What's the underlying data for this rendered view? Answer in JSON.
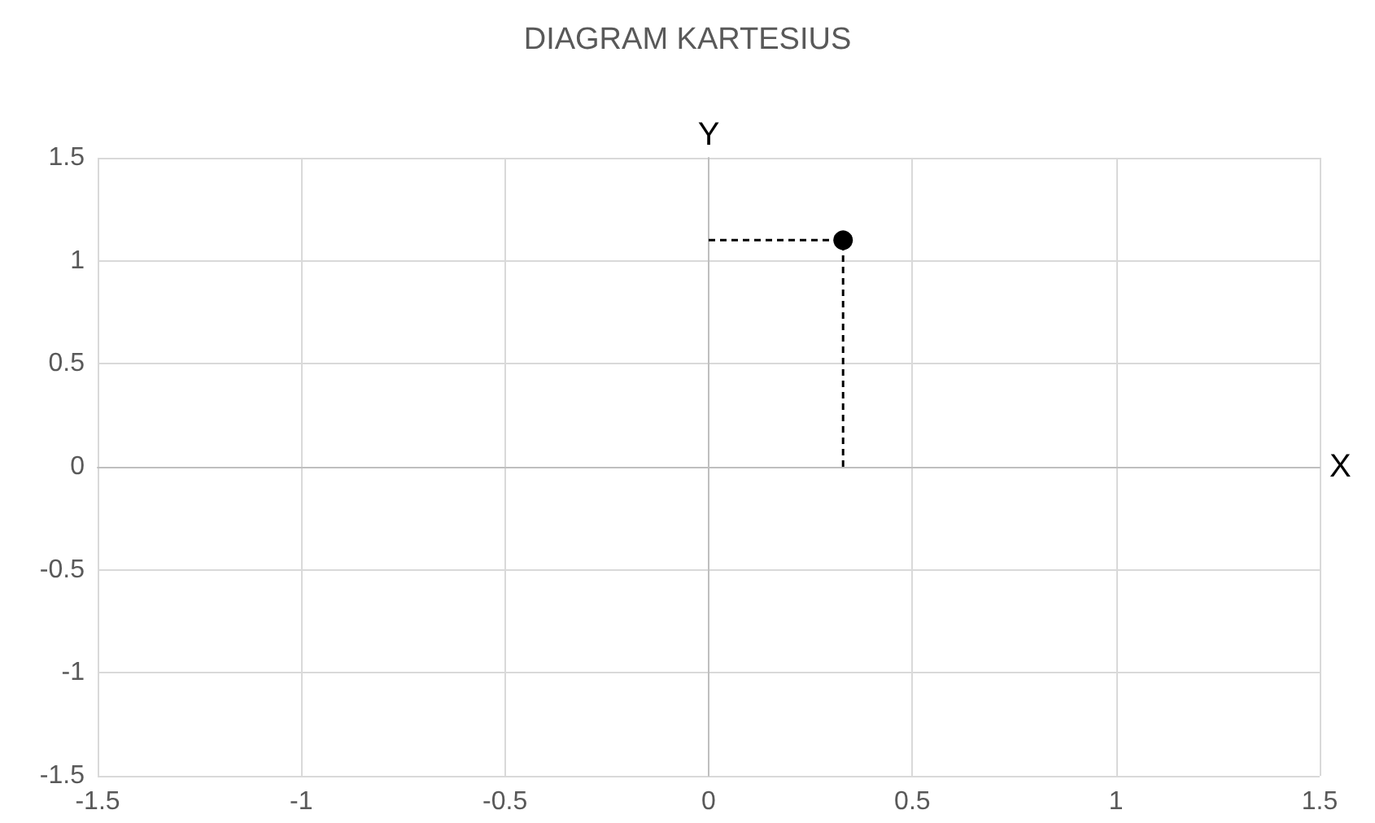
{
  "chart_data": {
    "type": "scatter",
    "title": "DIAGRAM KARTESIUS",
    "xlabel": "X",
    "ylabel": "Y",
    "series": [
      {
        "color": "#000000",
        "x": [
          0.33
        ],
        "values": [
          1.1
        ],
        "marker": "circle",
        "line_style": "dashed",
        "errors": [
          [
            0,
            1.1
          ]
        ],
        "xerrors": [
          [
            0,
            0.33
          ]
        ]
      }
    ],
    "xlim": [
      -1.5,
      1.5
    ],
    "xticks": [
      -1.5,
      -1,
      -0.5,
      0,
      0.5,
      1,
      1.5
    ],
    "ylim": [
      -1.5,
      1.5
    ],
    "yticks": [
      -1.5,
      -1,
      -0.5,
      0,
      0.5,
      1,
      1.5
    ],
    "grid": true
  }
}
